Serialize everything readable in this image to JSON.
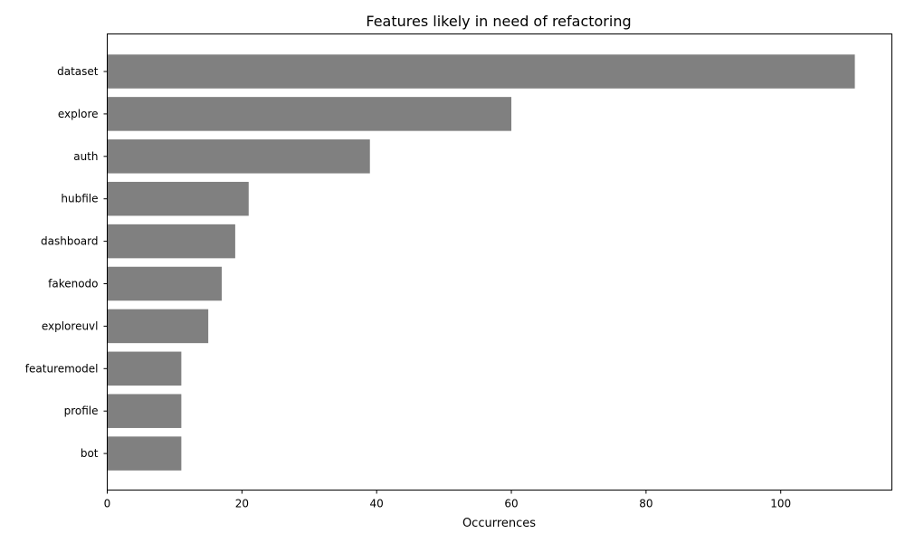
{
  "chart_data": {
    "type": "bar",
    "orientation": "horizontal",
    "title": "Features likely in need of refactoring",
    "xlabel": "Occurrences",
    "ylabel": "",
    "categories": [
      "dataset",
      "explore",
      "auth",
      "hubfile",
      "dashboard",
      "fakenodo",
      "exploreuvl",
      "featuremodel",
      "profile",
      "bot"
    ],
    "values": [
      111,
      60,
      39,
      21,
      19,
      17,
      15,
      11,
      11,
      11
    ],
    "xlim": [
      0,
      116.5
    ],
    "xticks": [
      0,
      20,
      40,
      60,
      80,
      100
    ],
    "bar_color": "#808080",
    "grid": false,
    "legend": "none"
  }
}
